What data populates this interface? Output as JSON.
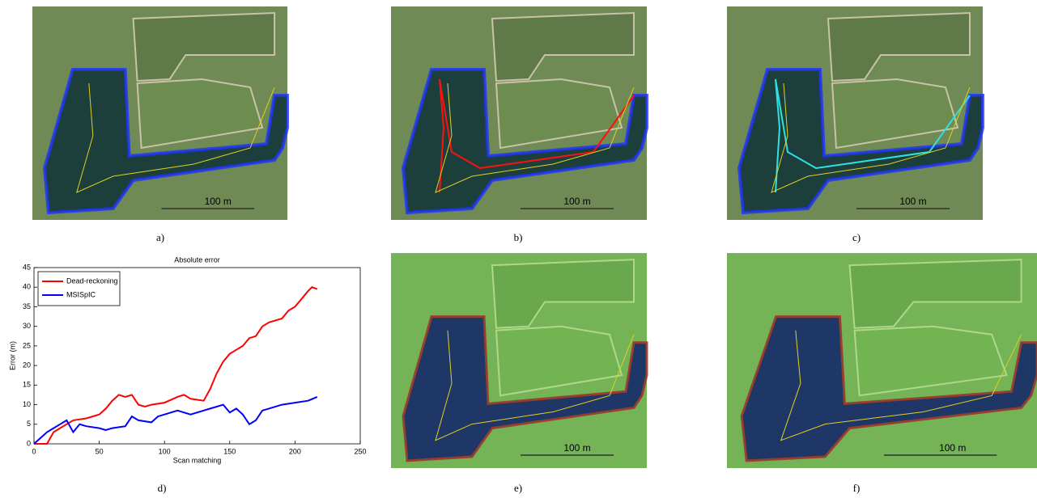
{
  "panels": [
    {
      "label": "a)",
      "scale": "100 m"
    },
    {
      "label": "b)",
      "scale": "100 m"
    },
    {
      "label": "c)",
      "scale": "100 m"
    },
    {
      "label": "d)"
    },
    {
      "label": "e)",
      "scale": "100 m"
    },
    {
      "label": "f)",
      "scale": "100 m"
    }
  ],
  "chart_data": {
    "type": "line",
    "title": "Absolute error",
    "xlabel": "Scan matching",
    "ylabel": "Error (m)",
    "xlim": [
      0,
      250
    ],
    "xticks": [
      0,
      50,
      100,
      150,
      200,
      250
    ],
    "ylim": [
      0,
      45
    ],
    "yticks": [
      0,
      5,
      10,
      15,
      20,
      25,
      30,
      35,
      40,
      45
    ],
    "legend": "upper left",
    "series": [
      {
        "name": "Dead-reckoning",
        "color": "#ff0000",
        "x": [
          0,
          10,
          15,
          20,
          25,
          30,
          40,
          50,
          55,
          60,
          65,
          70,
          75,
          80,
          85,
          90,
          100,
          110,
          115,
          120,
          130,
          135,
          140,
          145,
          150,
          155,
          160,
          165,
          170,
          175,
          180,
          190,
          195,
          200,
          205,
          210,
          213,
          217
        ],
        "values": [
          0,
          0,
          3,
          4,
          5,
          6,
          6.5,
          7.5,
          9,
          11,
          12.5,
          12,
          12.5,
          10,
          9.5,
          10,
          10.5,
          12,
          12.5,
          11.5,
          11,
          14,
          18,
          21,
          23,
          24,
          25,
          27,
          27.5,
          30,
          31,
          32,
          34,
          35,
          37,
          39,
          40,
          39.5
        ]
      },
      {
        "name": "MSISpIC",
        "color": "#0000ff",
        "x": [
          0,
          5,
          10,
          15,
          20,
          25,
          30,
          35,
          40,
          50,
          55,
          60,
          70,
          75,
          80,
          90,
          95,
          100,
          110,
          120,
          130,
          140,
          145,
          150,
          155,
          160,
          165,
          170,
          175,
          180,
          190,
          200,
          210,
          217
        ],
        "values": [
          0,
          1.5,
          3,
          4,
          5,
          6,
          3,
          5,
          4.5,
          4,
          3.5,
          4,
          4.5,
          7,
          6,
          5.5,
          7,
          7.5,
          8.5,
          7.5,
          8.5,
          9.5,
          10,
          8,
          9,
          7.5,
          5,
          6,
          8.5,
          9,
          10,
          10.5,
          11,
          12
        ]
      }
    ]
  }
}
